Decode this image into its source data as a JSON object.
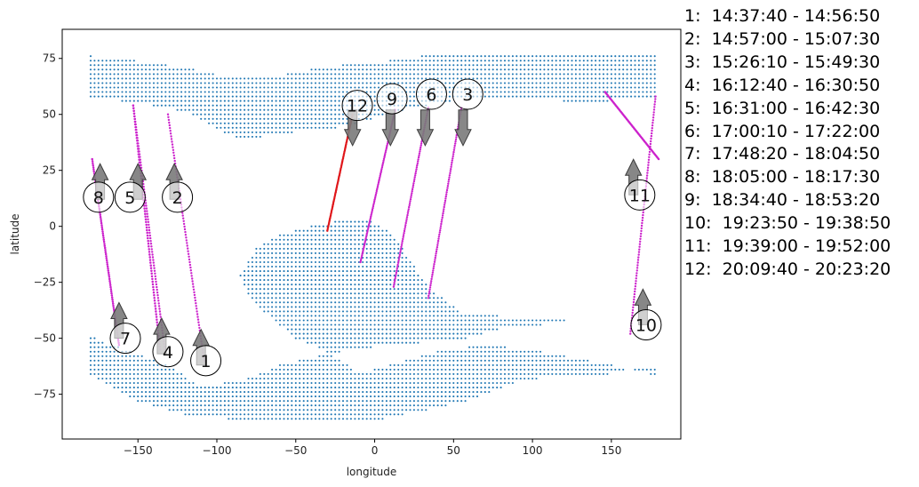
{
  "chart_data": {
    "type": "scatter",
    "title": "",
    "xlabel": "longitude",
    "ylabel": "latitude",
    "xlim": [
      -198,
      194
    ],
    "ylim": [
      -95,
      88
    ],
    "xticks": [
      -150,
      -100,
      -50,
      0,
      50,
      100,
      150
    ],
    "yticks": [
      -75,
      -50,
      -25,
      0,
      25,
      50,
      75
    ],
    "grid": false,
    "colors": {
      "land_points": "#1f77b4",
      "track_magenta": "#cc22cc",
      "track_red": "#e0161a",
      "arrow_fill": "#7a7a7a",
      "arrow_edge": "#3a3a3a"
    },
    "land_regions": [
      {
        "lon": [
          -180,
          180
        ],
        "lat": [
          -2,
          76
        ]
      },
      {
        "lon": [
          -180,
          180
        ],
        "lat": [
          -88,
          -2
        ]
      }
    ],
    "tracks": [
      {
        "id": "1",
        "color": "track_magenta",
        "start": [
          -131,
          50
        ],
        "end": [
          -108,
          -60
        ],
        "direction": "north",
        "label_at": [
          -107,
          -60
        ],
        "arrow_at": [
          -110,
          -54
        ]
      },
      {
        "id": "2",
        "color": "track_magenta",
        "start": [
          -153,
          54
        ],
        "end": [
          -133,
          -55
        ],
        "direction": "north",
        "label_at": [
          -125,
          13
        ],
        "arrow_at": [
          -127,
          20
        ]
      },
      {
        "id": "3",
        "color": "track_magenta",
        "start": [
          55,
          53
        ],
        "end": [
          34,
          -32
        ],
        "direction": "south",
        "label_at": [
          59,
          59
        ],
        "arrow_at": [
          56,
          44
        ]
      },
      {
        "id": "4",
        "color": "track_magenta",
        "start": [
          -153,
          54
        ],
        "end": [
          -136,
          -55
        ],
        "direction": "north",
        "label_at": [
          -131,
          -56
        ],
        "arrow_at": [
          -135,
          -49
        ]
      },
      {
        "id": "5",
        "color": "track_magenta",
        "start": [
          -153,
          54
        ],
        "end": [
          -136,
          -55
        ],
        "direction": "north",
        "label_at": [
          -155,
          13
        ],
        "arrow_at": [
          -150,
          20
        ]
      },
      {
        "id": "6",
        "color": "track_magenta",
        "start": [
          34,
          53
        ],
        "end": [
          12,
          -27
        ],
        "direction": "south",
        "label_at": [
          36,
          59
        ],
        "arrow_at": [
          32,
          44
        ]
      },
      {
        "id": "7",
        "color": "track_magenta",
        "start": [
          -179,
          30
        ],
        "end": [
          -162,
          -53
        ],
        "direction": "north",
        "label_at": [
          -158,
          -50
        ],
        "arrow_at": [
          -162,
          -42
        ]
      },
      {
        "id": "8",
        "color": "track_magenta",
        "start": [
          -179,
          30
        ],
        "end": [
          -162,
          -53
        ],
        "direction": "north",
        "label_at": [
          -175,
          13
        ],
        "arrow_at": [
          -174,
          20
        ]
      },
      {
        "id": "9",
        "color": "track_magenta",
        "start": [
          13,
          52
        ],
        "end": [
          -9,
          -16
        ],
        "direction": "south",
        "label_at": [
          11,
          57
        ],
        "arrow_at": [
          10,
          44
        ]
      },
      {
        "id": "10",
        "color": "track_magenta",
        "start": [
          178,
          58
        ],
        "end": [
          162,
          -48
        ],
        "direction": "north",
        "label_at": [
          172,
          -44
        ],
        "arrow_at": [
          170,
          -36
        ]
      },
      {
        "id": "11",
        "color": "track_magenta",
        "start": [
          146,
          60
        ],
        "end": [
          180,
          30
        ],
        "direction": "north",
        "label_at": [
          168,
          14
        ],
        "arrow_at": [
          164,
          22
        ]
      },
      {
        "id": "12",
        "color": "track_red",
        "start": [
          -14,
          50
        ],
        "end": [
          -30,
          -2
        ],
        "direction": "south",
        "label_at": [
          -11,
          54
        ],
        "arrow_at": [
          -14,
          44
        ]
      }
    ],
    "legend": [
      "1:  14:37:40 - 14:56:50",
      "2:  14:57:00 - 15:07:30",
      "3:  15:26:10 - 15:49:30",
      "4:  16:12:40 - 16:30:50",
      "5:  16:31:00 - 16:42:30",
      "6:  17:00:10 - 17:22:00",
      "7:  17:48:20 - 18:04:50",
      "8:  18:05:00 - 18:17:30",
      "9:  18:34:40 - 18:53:20",
      "10:  19:23:50 - 19:38:50",
      "11:  19:39:00 - 19:52:00",
      "12:  20:09:40 - 20:23:20"
    ],
    "legend_position": "right-outside"
  }
}
